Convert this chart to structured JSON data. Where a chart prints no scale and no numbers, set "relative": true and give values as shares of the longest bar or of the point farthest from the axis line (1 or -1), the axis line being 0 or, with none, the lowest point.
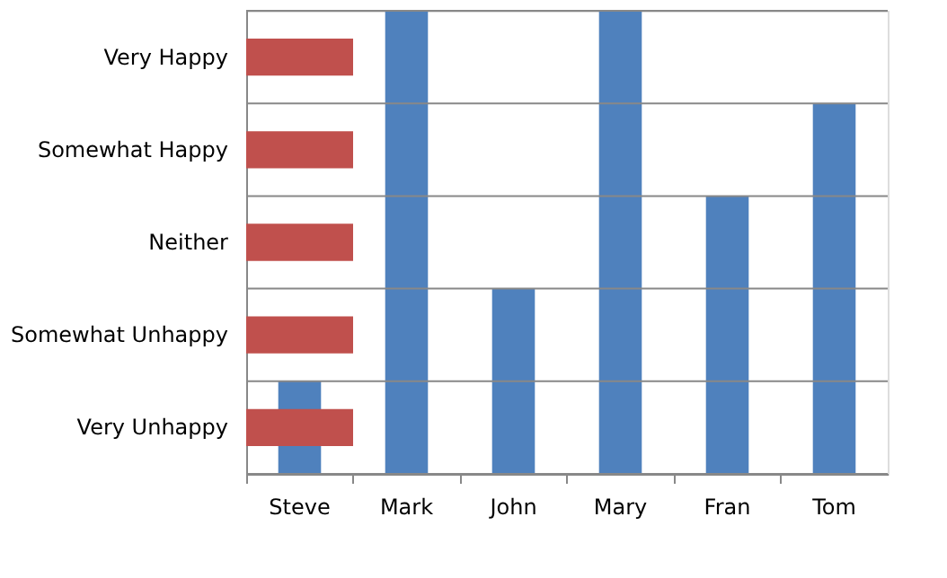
{
  "chart_data": {
    "type": "bar",
    "relative": true,
    "categories": [
      "Steve",
      "Mark",
      "John",
      "Mary",
      "Fran",
      "Tom"
    ],
    "series": [
      {
        "color": "#4f81bd",
        "values": [
          0.2,
          1,
          0.4,
          1,
          0.6,
          0.8
        ]
      }
    ],
    "bands": [
      {
        "axis": "y",
        "from": 0.06,
        "to": 0.14,
        "label": "Very Unhappy",
        "color": "#c0504d"
      },
      {
        "axis": "y",
        "from": 0.26,
        "to": 0.34,
        "label": "Somewhat Unhappy",
        "color": "#c0504d"
      },
      {
        "axis": "y",
        "from": 0.46,
        "to": 0.54,
        "label": "Neither",
        "color": "#c0504d"
      },
      {
        "axis": "y",
        "from": 0.66,
        "to": 0.74,
        "label": "Somewhat Happy",
        "color": "#c0504d"
      },
      {
        "axis": "y",
        "from": 0.86,
        "to": 0.94,
        "label": "Very Happy",
        "color": "#c0504d"
      }
    ],
    "grid": "y"
  }
}
